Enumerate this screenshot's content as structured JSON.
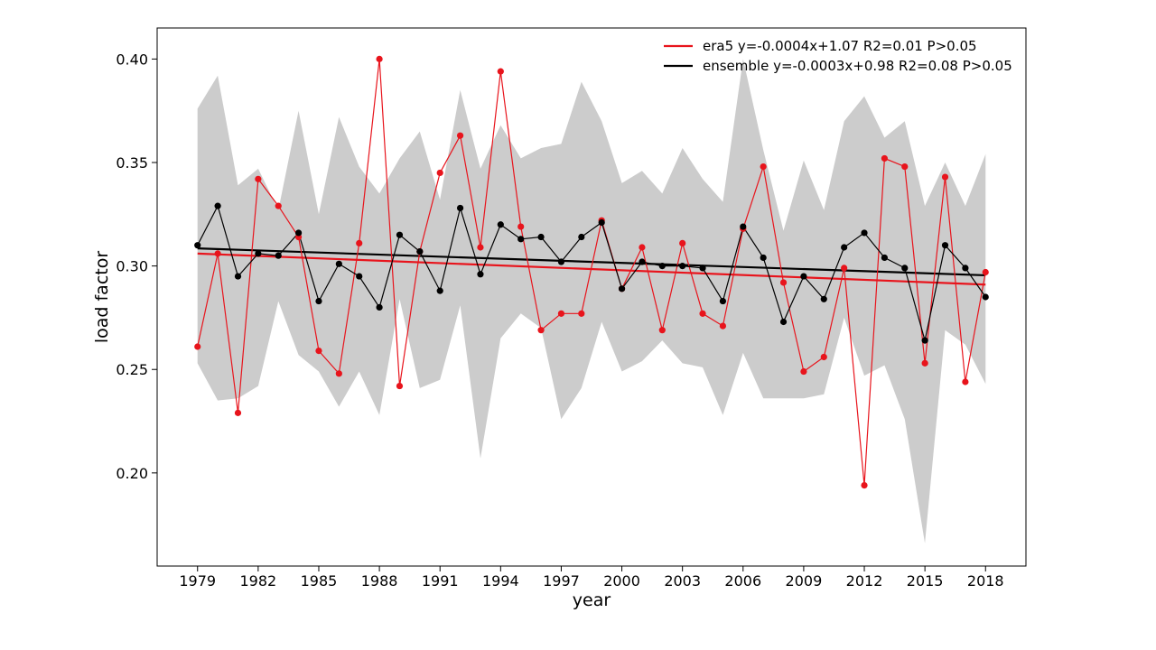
{
  "chart_data": {
    "type": "line",
    "title": "",
    "xlabel": "year",
    "ylabel": "load factor",
    "xlim": [
      1977,
      2020
    ],
    "ylim": [
      0.155,
      0.415
    ],
    "x_ticks": [
      "1979",
      "1982",
      "1985",
      "1988",
      "1991",
      "1994",
      "1997",
      "2000",
      "2003",
      "2006",
      "2009",
      "2012",
      "2015",
      "2018"
    ],
    "y_ticks": [
      "0.20",
      "0.25",
      "0.30",
      "0.35",
      "0.40"
    ],
    "grid": false,
    "legend_position": "top-right",
    "x": [
      1979,
      1980,
      1981,
      1982,
      1983,
      1984,
      1985,
      1986,
      1987,
      1988,
      1989,
      1990,
      1991,
      1992,
      1993,
      1994,
      1995,
      1996,
      1997,
      1998,
      1999,
      2000,
      2001,
      2002,
      2003,
      2004,
      2005,
      2006,
      2007,
      2008,
      2009,
      2010,
      2011,
      2012,
      2013,
      2014,
      2015,
      2016,
      2017,
      2018
    ],
    "series": [
      {
        "name": "era5",
        "legend_label": "era5 y=-0.0004x+1.07 R2=0.01 P>0.05",
        "color": "#e8141c",
        "values": [
          0.261,
          0.306,
          0.229,
          0.342,
          0.329,
          0.314,
          0.259,
          0.248,
          0.311,
          0.4,
          0.242,
          0.307,
          0.345,
          0.363,
          0.309,
          0.394,
          0.319,
          0.269,
          0.277,
          0.277,
          0.322,
          0.289,
          0.309,
          0.269,
          0.311,
          0.277,
          0.271,
          0.318,
          0.348,
          0.292,
          0.249,
          0.256,
          0.299,
          0.194,
          0.352,
          0.348,
          0.253,
          0.343,
          0.244,
          0.297
        ],
        "trend": [
          0.306,
          0.291
        ]
      },
      {
        "name": "ensemble",
        "legend_label": "ensemble y=-0.0003x+0.98 R2=0.08 P>0.05",
        "color": "#000000",
        "values": [
          0.31,
          0.329,
          0.295,
          0.306,
          0.305,
          0.316,
          0.283,
          0.301,
          0.295,
          0.28,
          0.315,
          0.307,
          0.288,
          0.328,
          0.296,
          0.32,
          0.313,
          0.314,
          0.302,
          0.314,
          0.321,
          0.289,
          0.302,
          0.3,
          0.3,
          0.299,
          0.283,
          0.319,
          0.304,
          0.273,
          0.295,
          0.284,
          0.309,
          0.316,
          0.304,
          0.299,
          0.264,
          0.31,
          0.299,
          0.285
        ],
        "trend": [
          0.3085,
          0.2955
        ]
      }
    ],
    "band": {
      "color": "#cccccc",
      "upper": [
        0.376,
        0.392,
        0.339,
        0.347,
        0.327,
        0.375,
        0.325,
        0.372,
        0.348,
        0.335,
        0.352,
        0.365,
        0.332,
        0.385,
        0.347,
        0.368,
        0.352,
        0.357,
        0.359,
        0.389,
        0.37,
        0.34,
        0.346,
        0.335,
        0.357,
        0.342,
        0.331,
        0.4,
        0.356,
        0.317,
        0.351,
        0.327,
        0.37,
        0.382,
        0.362,
        0.37,
        0.329,
        0.35,
        0.329,
        0.354
      ],
      "lower": [
        0.253,
        0.235,
        0.236,
        0.242,
        0.283,
        0.257,
        0.249,
        0.232,
        0.249,
        0.228,
        0.284,
        0.241,
        0.245,
        0.281,
        0.207,
        0.265,
        0.277,
        0.27,
        0.226,
        0.241,
        0.273,
        0.249,
        0.254,
        0.264,
        0.253,
        0.251,
        0.228,
        0.258,
        0.236,
        0.236,
        0.236,
        0.238,
        0.275,
        0.247,
        0.252,
        0.226,
        0.166,
        0.269,
        0.262,
        0.243
      ]
    }
  }
}
